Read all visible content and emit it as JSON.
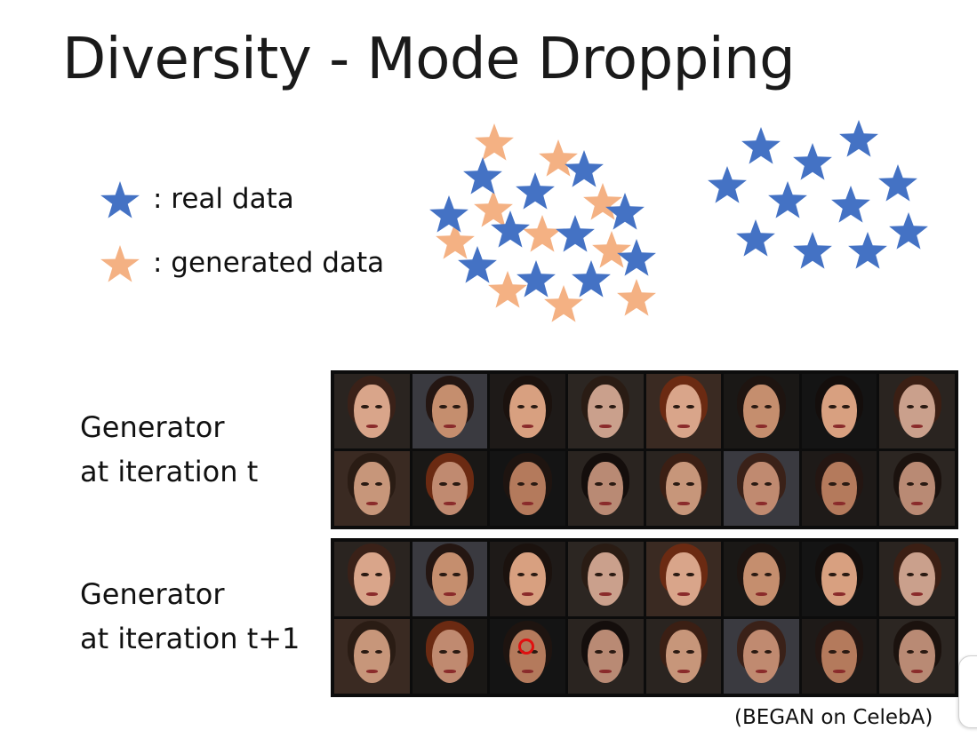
{
  "slide": {
    "title": "Diversity - Mode Dropping",
    "legend": [
      {
        "icon": "star-icon",
        "color": "#4472c4",
        "label": ": real data"
      },
      {
        "icon": "star-icon",
        "color": "#f4b183",
        "label": ": generated data"
      }
    ],
    "generator_rows": [
      {
        "label_line1": "Generator",
        "label_line2": "at iteration t"
      },
      {
        "label_line1": "Generator",
        "label_line2": "at iteration t+1"
      }
    ],
    "source": "(BEGAN on CelebA)"
  },
  "colors": {
    "real": "#4472c4",
    "generated": "#f4b183"
  }
}
